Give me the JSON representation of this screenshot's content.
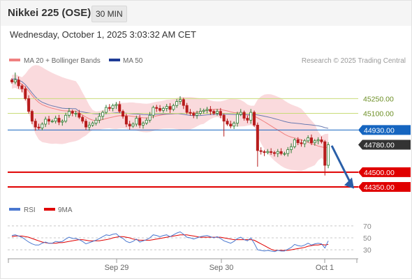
{
  "header": {
    "title": "Nikkei 225 (OSE)",
    "timeframe": "30 MIN",
    "timestamp": "Wednesday, October 1, 2025 3:03:32 AM CET"
  },
  "legend": {
    "bollinger_label": "MA 20 + Bollinger Bands",
    "ma50_label": "MA 50",
    "copyright": "Research © 2025 Trading Central"
  },
  "rsi_legend": {
    "rsi_label": "RSI",
    "ma_label": "9MA"
  },
  "colors": {
    "up": "#2e7d32",
    "down": "#b71c1c",
    "bollinger_band": "#fadadd",
    "ma20": "#f08080",
    "ma50": "#1e3c96",
    "current_level": "#1565c0",
    "last_price": "#333333",
    "support": "#e00000",
    "resistance_line": "#c8dc78",
    "forecast_arrow": "#2a5fa8",
    "rsi": "#4a78d0",
    "rsi_ma": "#e00000"
  },
  "chart_data": {
    "type": "candlestick",
    "x_ticks": [
      "Sep 29",
      "Sep 30",
      "Oct 1"
    ],
    "levels": [
      {
        "label": "45250.00",
        "value": 45250,
        "kind": "resistance"
      },
      {
        "label": "45100.00",
        "value": 45100,
        "kind": "resistance"
      },
      {
        "label": "44930.00",
        "value": 44930,
        "kind": "current"
      },
      {
        "label": "44780.00",
        "value": 44780,
        "kind": "last"
      },
      {
        "label": "44500.00",
        "value": 44500,
        "kind": "support"
      },
      {
        "label": "44350.00",
        "value": 44350,
        "kind": "support"
      }
    ],
    "ylim": [
      44250,
      45530
    ],
    "closes": [
      45420,
      45440,
      45380,
      45350,
      45250,
      45120,
      45020,
      44960,
      44950,
      44990,
      45040,
      45020,
      45020,
      45050,
      45010,
      45020,
      45080,
      45120,
      45100,
      45100,
      45060,
      45020,
      44960,
      44980,
      45000,
      45030,
      45070,
      45110,
      45160,
      45150,
      45180,
      45190,
      45120,
      45070,
      44990,
      44970,
      44990,
      45050,
      44980,
      45000,
      45030,
      45080,
      45160,
      45150,
      45130,
      45150,
      45170,
      45140,
      45180,
      45220,
      45240,
      45180,
      45110,
      45100,
      45080,
      45100,
      45120,
      45130,
      45140,
      45120,
      45100,
      45120,
      45080,
      45020,
      44990,
      44970,
      45000,
      45090,
      45110,
      45050,
      45030,
      45110,
      44980,
      44720,
      44710,
      44700,
      44710,
      44700,
      44690,
      44710,
      44690,
      44690,
      44730,
      44760,
      44830,
      44800,
      44790,
      44820,
      44850,
      44800,
      44820,
      44830,
      44810,
      44570,
      44780
    ],
    "rsi": {
      "ylim": [
        15,
        78
      ],
      "ticks": [
        70,
        50,
        30
      ],
      "values": [
        54,
        55,
        53,
        51,
        47,
        43,
        40,
        38,
        38,
        41,
        43,
        41,
        41,
        44,
        43,
        44,
        48,
        51,
        49,
        49,
        47,
        44,
        40,
        42,
        44,
        46,
        49,
        52,
        55,
        54,
        56,
        57,
        52,
        49,
        44,
        42,
        44,
        48,
        43,
        45,
        47,
        50,
        55,
        54,
        52,
        54,
        55,
        52,
        55,
        58,
        60,
        56,
        51,
        50,
        48,
        50,
        52,
        53,
        54,
        52,
        50,
        52,
        49,
        45,
        43,
        41,
        44,
        49,
        51,
        47,
        45,
        50,
        41,
        30,
        29,
        28,
        29,
        28,
        27,
        29,
        28,
        28,
        31,
        34,
        39,
        37,
        36,
        38,
        41,
        38,
        40,
        41,
        40,
        33,
        45
      ],
      "ma_values": [
        52,
        53,
        53,
        53,
        52,
        51,
        49,
        47,
        45,
        43,
        42,
        41,
        41,
        41,
        42,
        42,
        43,
        44,
        45,
        46,
        47,
        47,
        46,
        45,
        45,
        45,
        45,
        46,
        47,
        48,
        50,
        51,
        52,
        52,
        51,
        50,
        48,
        47,
        46,
        46,
        46,
        46,
        47,
        48,
        49,
        50,
        51,
        52,
        53,
        54,
        55,
        55,
        55,
        54,
        53,
        52,
        51,
        51,
        51,
        51,
        51,
        51,
        51,
        50,
        49,
        48,
        47,
        47,
        47,
        47,
        47,
        47,
        46,
        43,
        40,
        37,
        34,
        31,
        29,
        29,
        29,
        29,
        29,
        30,
        31,
        32,
        33,
        34,
        36,
        37,
        38,
        38,
        39,
        38,
        39
      ]
    }
  }
}
